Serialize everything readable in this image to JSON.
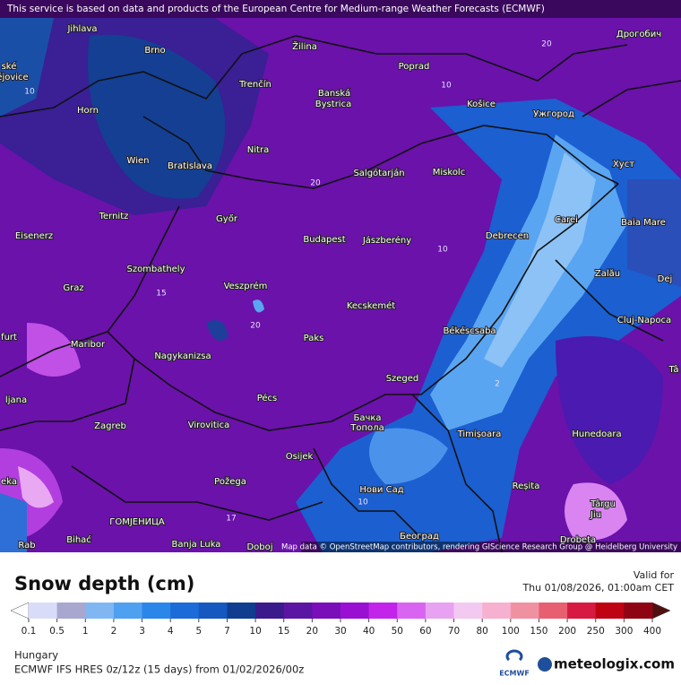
{
  "header": {
    "notice": "This service is based on data and products of the European Centre for Medium-range Weather Forecasts (ECMWF)"
  },
  "map": {
    "attribution": "Map data © OpenStreetMap contributors, rendering GIScience Research Group @ Heidelberg University",
    "places": [
      "Jihlava",
      "Brno",
      "Žilina",
      "Poprad",
      "Дрогобич",
      "ské",
      "ějovice",
      "Trenčín",
      "Banská",
      "Bystrica",
      "Košice",
      "Ужгород",
      "Horn",
      "Wien",
      "Bratislava",
      "Nitra",
      "Хуст",
      "Salgótarján",
      "Miskolc",
      "Carei",
      "Baia Mare",
      "Ternitz",
      "Győr",
      "Budapest",
      "Jászberény",
      "Debrecen",
      "Eisenerz",
      "Szombathely",
      "Zalău",
      "Graz",
      "Veszprém",
      "Dej",
      "Kecskemét",
      "Cluj-Napoca",
      "furt",
      "Maribor",
      "Paks",
      "Békéscsaba",
      "Nagykanizsa",
      "Tâ",
      "Szeged",
      "Pécs",
      "ljana",
      "Zagreb",
      "Virovitica",
      "Бачка",
      "Топола",
      "Timișoara",
      "Hunedoara",
      "Osijek",
      "Požega",
      "eka",
      "Нови Сад",
      "Reșita",
      "Târgu",
      "Jiu",
      "ГОМЈЕНИЦА",
      "Bihać",
      "Banja Luka",
      "Doboj",
      "Београд",
      "Rab",
      "Drobeta"
    ],
    "contour_labels": [
      "10",
      "20",
      "10",
      "20",
      "10",
      "15",
      "20",
      "2",
      "10",
      "17"
    ]
  },
  "legend": {
    "title": "Snow depth (cm)",
    "valid_label": "Valid for",
    "valid_time": "Thu 01/08/2026, 01:00am CET",
    "ticks": [
      0.1,
      0.5,
      1,
      2,
      3,
      4,
      5,
      7,
      10,
      15,
      20,
      30,
      40,
      50,
      60,
      70,
      80,
      100,
      150,
      200,
      250,
      300,
      400
    ],
    "colors": [
      "#d9dcf8",
      "#a7a7cf",
      "#80b7f3",
      "#4fa0f0",
      "#2b86ea",
      "#1b6bd8",
      "#1558c0",
      "#103d8f",
      "#3b1a8c",
      "#5a16a2",
      "#7a0fba",
      "#9a10d2",
      "#c224ea",
      "#d964f1",
      "#e8a2f2",
      "#f2c9f1",
      "#f7b1d0",
      "#f091a2",
      "#e75f70",
      "#d71a42",
      "#bf0312",
      "#8f0412"
    ],
    "under_color": "#ffffff",
    "over_color": "#4f0f0f"
  },
  "footer": {
    "region": "Hungary",
    "model": "ECMWF IFS HRES 0z/12z (15 days) from 01/02/2026/00z",
    "ecmwf": "ECMWF",
    "brand": "meteologix.com"
  }
}
